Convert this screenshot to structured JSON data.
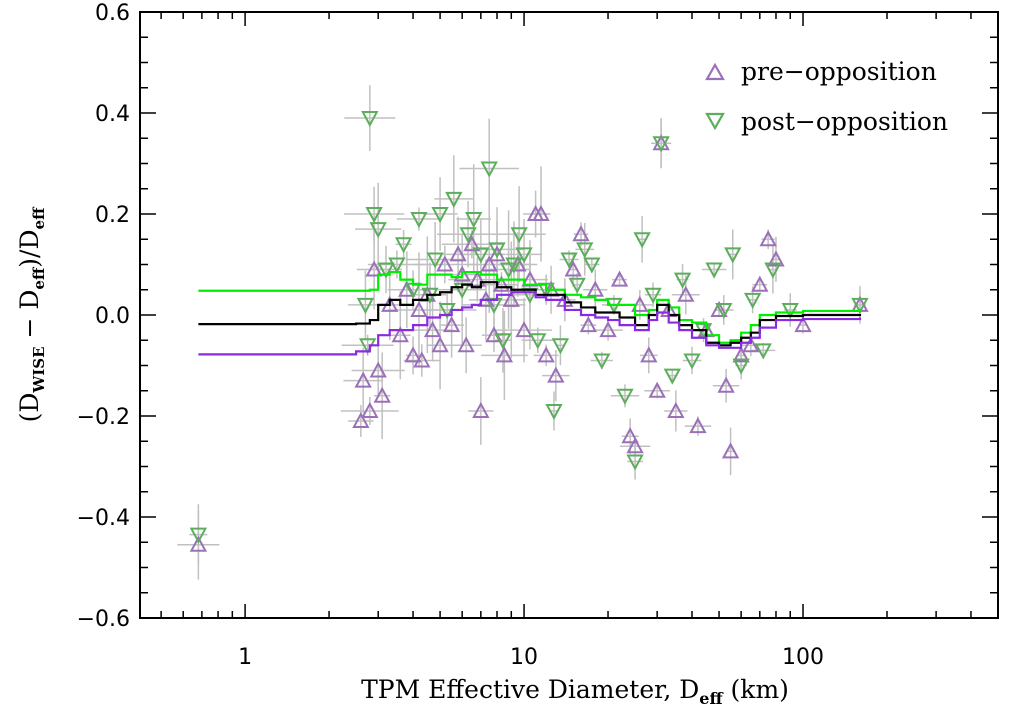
{
  "chart_data": {
    "type": "scatter",
    "title": "",
    "xlabel": "TPM Effective Diameter, D",
    "xlabel_sub": "eff",
    "xlabel_unit": " (km)",
    "ylabel_parts": [
      "(D",
      "WISE",
      " − D",
      "eff",
      ")/D",
      "eff"
    ],
    "xscale": "log",
    "xlim": [
      0.42,
      500
    ],
    "ylim": [
      -0.6,
      0.6
    ],
    "x_tick_labels": [
      "1",
      "10",
      "100"
    ],
    "y_tick_labels": [
      "−0.6",
      "−0.4",
      "−0.2",
      "0.0",
      "0.2",
      "0.4",
      "0.6"
    ],
    "legend": {
      "placement": "top-right",
      "entries": [
        {
          "label": "pre−opposition",
          "marker": "triangle-up",
          "color": "#9b70b8"
        },
        {
          "label": "post−opposition",
          "marker": "triangle-down",
          "color": "#5cad5c"
        }
      ]
    },
    "colors": {
      "pre_marker": "#9b70b8",
      "post_marker": "#5cad5c",
      "error_bar": "#c0c0c0",
      "post_mean": "#00ee00",
      "pre_mean": "#8a2be2",
      "all_mean": "#000000"
    },
    "series": [
      {
        "name": "pre−opposition",
        "marker": "triangle-up",
        "points": [
          [
            0.68,
            -0.455
          ],
          [
            2.6,
            -0.21
          ],
          [
            2.65,
            -0.13
          ],
          [
            2.8,
            -0.19
          ],
          [
            2.9,
            0.09
          ],
          [
            3.0,
            -0.11
          ],
          [
            3.1,
            -0.16
          ],
          [
            3.3,
            0.02
          ],
          [
            3.6,
            -0.04
          ],
          [
            3.8,
            0.05
          ],
          [
            4.0,
            -0.08
          ],
          [
            4.2,
            0.01
          ],
          [
            4.3,
            -0.09
          ],
          [
            4.5,
            0.04
          ],
          [
            4.7,
            -0.03
          ],
          [
            5.0,
            -0.06
          ],
          [
            5.2,
            0.1
          ],
          [
            5.5,
            -0.02
          ],
          [
            5.8,
            0.12
          ],
          [
            6.0,
            0.08
          ],
          [
            6.2,
            -0.06
          ],
          [
            6.5,
            0.14
          ],
          [
            6.8,
            0.07
          ],
          [
            7.0,
            -0.19
          ],
          [
            7.3,
            0.03
          ],
          [
            7.5,
            0.1
          ],
          [
            7.8,
            -0.04
          ],
          [
            8.0,
            0.12
          ],
          [
            8.3,
            0.06
          ],
          [
            8.5,
            -0.08
          ],
          [
            9.0,
            0.03
          ],
          [
            9.5,
            0.1
          ],
          [
            10.0,
            -0.03
          ],
          [
            10.5,
            0.07
          ],
          [
            11.0,
            0.2
          ],
          [
            11.5,
            0.2
          ],
          [
            12.0,
            -0.08
          ],
          [
            12.5,
            0.05
          ],
          [
            13.0,
            -0.12
          ],
          [
            14.0,
            0.03
          ],
          [
            15.0,
            0.09
          ],
          [
            16.0,
            0.16
          ],
          [
            17.0,
            -0.02
          ],
          [
            18.0,
            0.05
          ],
          [
            20.0,
            -0.03
          ],
          [
            22.0,
            0.07
          ],
          [
            24.0,
            -0.24
          ],
          [
            25.0,
            -0.26
          ],
          [
            26.0,
            0.02
          ],
          [
            28.0,
            -0.08
          ],
          [
            30.0,
            -0.15
          ],
          [
            31.0,
            0.34
          ],
          [
            33.0,
            0.01
          ],
          [
            35.0,
            -0.19
          ],
          [
            38.0,
            0.04
          ],
          [
            42.0,
            -0.22
          ],
          [
            45.0,
            -0.03
          ],
          [
            50.0,
            0.01
          ],
          [
            53.0,
            -0.14
          ],
          [
            55.0,
            -0.27
          ],
          [
            60.0,
            -0.08
          ],
          [
            65.0,
            -0.06
          ],
          [
            70.0,
            0.06
          ],
          [
            75.0,
            0.15
          ],
          [
            80.0,
            0.11
          ],
          [
            100.0,
            -0.02
          ],
          [
            160.0,
            0.02
          ]
        ]
      },
      {
        "name": "post−opposition",
        "marker": "triangle-down",
        "points": [
          [
            0.68,
            -0.435
          ],
          [
            2.7,
            0.02
          ],
          [
            2.75,
            -0.06
          ],
          [
            2.8,
            0.39
          ],
          [
            2.9,
            0.2
          ],
          [
            3.0,
            0.17
          ],
          [
            3.2,
            0.09
          ],
          [
            3.5,
            0.1
          ],
          [
            3.7,
            0.14
          ],
          [
            4.0,
            0.05
          ],
          [
            4.2,
            0.19
          ],
          [
            4.6,
            0.04
          ],
          [
            4.8,
            0.11
          ],
          [
            5.0,
            0.2
          ],
          [
            5.3,
            0.01
          ],
          [
            5.6,
            0.23
          ],
          [
            6.0,
            0.05
          ],
          [
            6.3,
            0.16
          ],
          [
            6.6,
            0.19
          ],
          [
            7.0,
            0.12
          ],
          [
            7.5,
            0.29
          ],
          [
            7.8,
            0.02
          ],
          [
            8.0,
            0.13
          ],
          [
            8.4,
            -0.05
          ],
          [
            8.8,
            0.09
          ],
          [
            9.2,
            0.1
          ],
          [
            9.6,
            0.16
          ],
          [
            10.0,
            0.12
          ],
          [
            10.5,
            0.04
          ],
          [
            11.2,
            -0.05
          ],
          [
            12.0,
            0.05
          ],
          [
            12.8,
            -0.19
          ],
          [
            13.5,
            -0.06
          ],
          [
            14.5,
            0.11
          ],
          [
            15.5,
            0.06
          ],
          [
            16.5,
            0.13
          ],
          [
            17.5,
            0.1
          ],
          [
            19.0,
            -0.09
          ],
          [
            21.0,
            0.02
          ],
          [
            23.0,
            -0.16
          ],
          [
            25.0,
            -0.29
          ],
          [
            26.5,
            0.15
          ],
          [
            29.0,
            0.04
          ],
          [
            31.0,
            0.34
          ],
          [
            34.0,
            -0.12
          ],
          [
            37.0,
            0.07
          ],
          [
            40.0,
            -0.09
          ],
          [
            44.0,
            -0.03
          ],
          [
            48.0,
            0.09
          ],
          [
            52.0,
            0.01
          ],
          [
            56.0,
            0.12
          ],
          [
            60.0,
            -0.1
          ],
          [
            66.0,
            0.03
          ],
          [
            72.0,
            -0.07
          ],
          [
            78.0,
            0.09
          ],
          [
            90.0,
            0.01
          ],
          [
            160.0,
            0.02
          ]
        ]
      },
      {
        "name": "",
        "type": "line",
        "color": "#00ee00",
        "points": [
          [
            0.68,
            0.048
          ],
          [
            2.5,
            0.048
          ],
          [
            2.8,
            0.05
          ],
          [
            3.0,
            0.08
          ],
          [
            3.3,
            0.085
          ],
          [
            3.6,
            0.07
          ],
          [
            4.0,
            0.06
          ],
          [
            4.5,
            0.08
          ],
          [
            5.0,
            0.08
          ],
          [
            5.5,
            0.075
          ],
          [
            6.0,
            0.085
          ],
          [
            7.0,
            0.08
          ],
          [
            8.0,
            0.07
          ],
          [
            9.0,
            0.07
          ],
          [
            10.0,
            0.06
          ],
          [
            11.0,
            0.06
          ],
          [
            12.0,
            0.05
          ],
          [
            14.0,
            0.04
          ],
          [
            16.0,
            0.035
          ],
          [
            18.0,
            0.03
          ],
          [
            20.0,
            0.02
          ],
          [
            22.0,
            0.02
          ],
          [
            25.0,
            0.0
          ],
          [
            28.0,
            0.01
          ],
          [
            30.0,
            0.03
          ],
          [
            33.0,
            0.015
          ],
          [
            36.0,
            -0.01
          ],
          [
            40.0,
            -0.015
          ],
          [
            45.0,
            -0.04
          ],
          [
            50.0,
            -0.055
          ],
          [
            55.0,
            -0.05
          ],
          [
            60.0,
            -0.035
          ],
          [
            65.0,
            -0.02
          ],
          [
            70.0,
            0.0
          ],
          [
            80.0,
            0.005
          ],
          [
            100.0,
            0.008
          ],
          [
            160.0,
            0.01
          ]
        ]
      },
      {
        "name": "",
        "type": "line",
        "color": "#000000",
        "points": [
          [
            0.68,
            -0.018
          ],
          [
            2.5,
            -0.017
          ],
          [
            2.8,
            -0.01
          ],
          [
            3.0,
            0.02
          ],
          [
            3.3,
            0.03
          ],
          [
            3.6,
            0.02
          ],
          [
            4.0,
            0.03
          ],
          [
            4.5,
            0.04
          ],
          [
            5.0,
            0.045
          ],
          [
            5.5,
            0.055
          ],
          [
            6.0,
            0.06
          ],
          [
            6.5,
            0.055
          ],
          [
            7.0,
            0.065
          ],
          [
            8.0,
            0.055
          ],
          [
            9.0,
            0.05
          ],
          [
            10.0,
            0.05
          ],
          [
            11.0,
            0.04
          ],
          [
            12.0,
            0.04
          ],
          [
            14.0,
            0.025
          ],
          [
            16.0,
            0.015
          ],
          [
            18.0,
            0.005
          ],
          [
            20.0,
            0.005
          ],
          [
            22.0,
            -0.005
          ],
          [
            25.0,
            -0.02
          ],
          [
            28.0,
            0.0
          ],
          [
            30.0,
            0.02
          ],
          [
            33.0,
            0.0
          ],
          [
            36.0,
            -0.02
          ],
          [
            40.0,
            -0.03
          ],
          [
            45.0,
            -0.055
          ],
          [
            50.0,
            -0.06
          ],
          [
            55.0,
            -0.055
          ],
          [
            60.0,
            -0.045
          ],
          [
            65.0,
            -0.035
          ],
          [
            70.0,
            -0.01
          ],
          [
            80.0,
            -0.002
          ],
          [
            100.0,
            0.0
          ],
          [
            160.0,
            0.002
          ]
        ]
      },
      {
        "name": "",
        "type": "line",
        "color": "#8a2be2",
        "points": [
          [
            0.68,
            -0.078
          ],
          [
            2.5,
            -0.072
          ],
          [
            2.8,
            -0.06
          ],
          [
            3.0,
            -0.04
          ],
          [
            3.3,
            -0.03
          ],
          [
            3.6,
            -0.03
          ],
          [
            4.0,
            -0.02
          ],
          [
            4.5,
            -0.005
          ],
          [
            5.0,
            0.0
          ],
          [
            5.5,
            0.01
          ],
          [
            6.0,
            0.015
          ],
          [
            6.5,
            0.02
          ],
          [
            7.0,
            0.03
          ],
          [
            8.0,
            0.04
          ],
          [
            9.0,
            0.045
          ],
          [
            10.0,
            0.045
          ],
          [
            11.0,
            0.035
          ],
          [
            12.0,
            0.03
          ],
          [
            14.0,
            0.01
          ],
          [
            16.0,
            0.0
          ],
          [
            18.0,
            -0.005
          ],
          [
            20.0,
            -0.01
          ],
          [
            22.0,
            -0.02
          ],
          [
            25.0,
            -0.03
          ],
          [
            28.0,
            -0.01
          ],
          [
            30.0,
            0.005
          ],
          [
            33.0,
            -0.015
          ],
          [
            36.0,
            -0.03
          ],
          [
            40.0,
            -0.045
          ],
          [
            45.0,
            -0.06
          ],
          [
            50.0,
            -0.065
          ],
          [
            55.0,
            -0.065
          ],
          [
            60.0,
            -0.055
          ],
          [
            65.0,
            -0.045
          ],
          [
            70.0,
            -0.025
          ],
          [
            80.0,
            -0.01
          ],
          [
            100.0,
            -0.008
          ],
          [
            160.0,
            -0.005
          ]
        ]
      }
    ]
  }
}
